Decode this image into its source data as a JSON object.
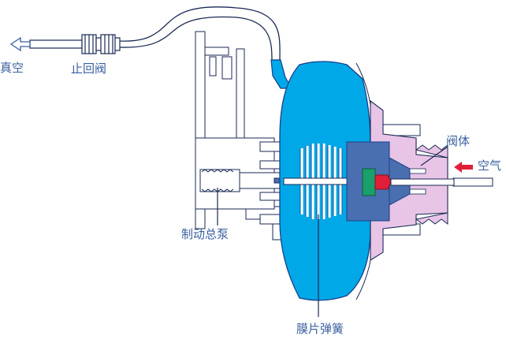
{
  "labels": {
    "vacuum": "真空",
    "check_valve": "止回阀",
    "valve_body": "阀体",
    "air": "空气",
    "master_cylinder": "制动总泵",
    "diaphragm_spring": "膜片弹簧"
  },
  "colors": {
    "chamber_fill": "#00a8e8",
    "chamber_stroke": "#1a3f8a",
    "valve_housing": "#e8c4e6",
    "label_text": "#3a5fa0",
    "air_arrow": "#e0203a",
    "line": "#1a2a55",
    "piston": "#4a6fb0",
    "valve_green": "#1aa06a",
    "valve_red": "#e0203a"
  },
  "icons": {
    "vacuum_arrow": "hollow-arrow-left-icon",
    "air_arrow": "red-arrow-left-icon"
  }
}
